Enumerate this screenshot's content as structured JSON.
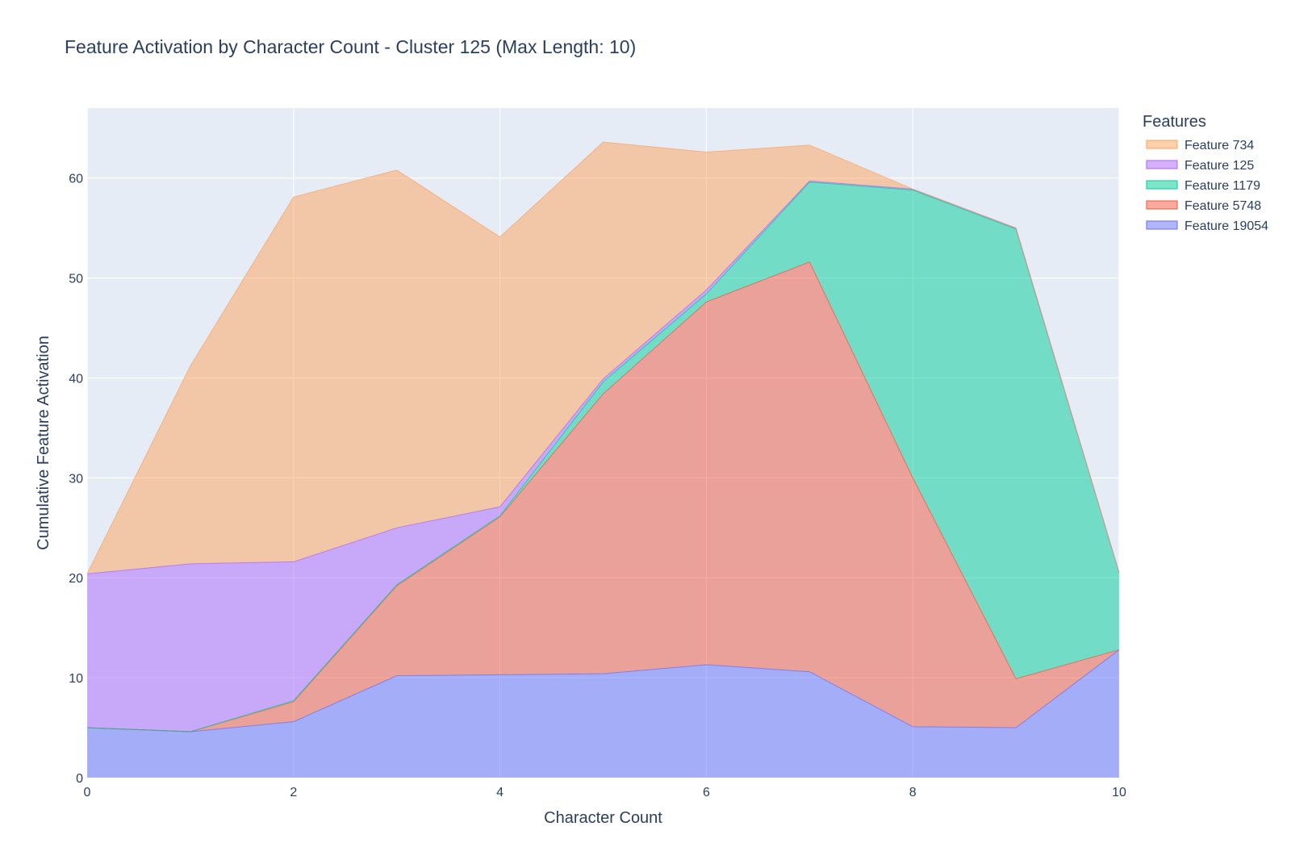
{
  "chart_data": {
    "type": "area",
    "stacked": true,
    "title": "Feature Activation by Character Count - Cluster 125 (Max Length: 10)",
    "xlabel": "Character Count",
    "ylabel": "Cumulative Feature Activation",
    "xlim": [
      0,
      10
    ],
    "ylim": [
      0,
      67
    ],
    "x_ticks": [
      0,
      2,
      4,
      6,
      8,
      10
    ],
    "y_ticks": [
      0,
      10,
      20,
      30,
      40,
      50,
      60
    ],
    "grid": true,
    "legend_title": "Features",
    "legend_position": "top-right",
    "plot_background": "#e5ecf6",
    "x": [
      0,
      1,
      2,
      3,
      4,
      5,
      6,
      7,
      8,
      9,
      10
    ],
    "series": [
      {
        "name": "Feature 19054",
        "color": "#636efa",
        "values": [
          5.0,
          4.6,
          5.6,
          10.2,
          10.3,
          10.4,
          11.3,
          10.6,
          5.1,
          5.0,
          12.8
        ]
      },
      {
        "name": "Feature 5748",
        "color": "#ef553b",
        "values": [
          0.0,
          0.0,
          2.0,
          9.0,
          15.8,
          28.0,
          36.3,
          41.0,
          24.9,
          4.9,
          0.0
        ]
      },
      {
        "name": "Feature 1179",
        "color": "#00cc96",
        "values": [
          0.0,
          0.0,
          0.1,
          0.1,
          0.1,
          1.2,
          0.8,
          8.0,
          28.8,
          45.0,
          7.7
        ]
      },
      {
        "name": "Feature 125",
        "color": "#ab63fa",
        "values": [
          15.4,
          16.8,
          13.9,
          5.7,
          0.9,
          0.3,
          0.4,
          0.1,
          0.1,
          0.1,
          0.0
        ]
      },
      {
        "name": "Feature 734",
        "color": "#ffa15a",
        "values": [
          0.0,
          19.8,
          36.5,
          35.8,
          27.0,
          23.7,
          13.8,
          3.6,
          0.0,
          0.0,
          0.0
        ]
      }
    ]
  }
}
